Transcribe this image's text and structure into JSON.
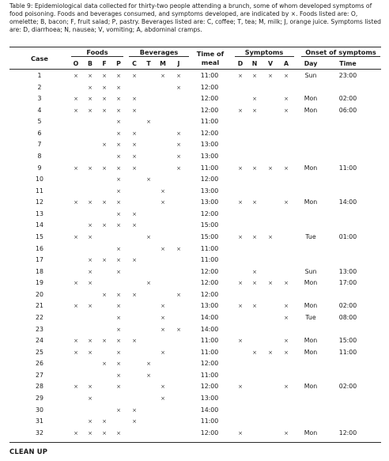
{
  "caption": "Table 9: Epidemiological data collected for thirty-two people attending a brunch, some of whom developed symptoms of food poisoning. Foods and beverages consumed, and symptoms developed, are indicated by ×. Foods listed are: O, omelette; B, bacon; F, fruit salad; P, pastry. Beverages listed are: C, coffee; T, tea; M, milk; J, orange juice. Symptoms listed are: D, diarrhoea; N, nausea; V, vomiting; A, abdominal cramps.",
  "headers": {
    "case": "Case",
    "foods": "Foods",
    "beverages": "Beverages",
    "time_of_meal_1": "Time of",
    "time_of_meal_2": "meal",
    "symptoms": "Symptoms",
    "onset": "Onset of symptoms",
    "food_cols": [
      "O",
      "B",
      "F",
      "P"
    ],
    "bev_cols": [
      "C",
      "T",
      "M",
      "J"
    ],
    "sym_cols": [
      "D",
      "N",
      "V",
      "A"
    ],
    "onset_day": "Day",
    "onset_time": "Time"
  },
  "mark_symbol": "×",
  "rows": [
    {
      "case": "1",
      "foods": [
        1,
        1,
        1,
        1
      ],
      "bev": [
        1,
        0,
        1,
        1
      ],
      "meal": "11:00",
      "sym": [
        1,
        1,
        1,
        1
      ],
      "day": "Sun",
      "time": "23:00"
    },
    {
      "case": "2",
      "foods": [
        0,
        1,
        1,
        1
      ],
      "bev": [
        0,
        0,
        0,
        1
      ],
      "meal": "12:00",
      "sym": [
        0,
        0,
        0,
        0
      ],
      "day": "",
      "time": ""
    },
    {
      "case": "3",
      "foods": [
        1,
        1,
        1,
        1
      ],
      "bev": [
        1,
        0,
        0,
        0
      ],
      "meal": "12:00",
      "sym": [
        0,
        1,
        0,
        1
      ],
      "day": "Mon",
      "time": "02:00"
    },
    {
      "case": "4",
      "foods": [
        1,
        1,
        1,
        1
      ],
      "bev": [
        1,
        0,
        0,
        0
      ],
      "meal": "12:00",
      "sym": [
        1,
        1,
        0,
        1
      ],
      "day": "Mon",
      "time": "06:00"
    },
    {
      "case": "5",
      "foods": [
        0,
        0,
        0,
        1
      ],
      "bev": [
        0,
        1,
        0,
        0
      ],
      "meal": "11:00",
      "sym": [
        0,
        0,
        0,
        0
      ],
      "day": "",
      "time": ""
    },
    {
      "case": "6",
      "foods": [
        0,
        0,
        0,
        1
      ],
      "bev": [
        1,
        0,
        0,
        1
      ],
      "meal": "12:00",
      "sym": [
        0,
        0,
        0,
        0
      ],
      "day": "",
      "time": ""
    },
    {
      "case": "7",
      "foods": [
        0,
        0,
        1,
        1
      ],
      "bev": [
        1,
        0,
        0,
        1
      ],
      "meal": "13:00",
      "sym": [
        0,
        0,
        0,
        0
      ],
      "day": "",
      "time": ""
    },
    {
      "case": "8",
      "foods": [
        0,
        0,
        0,
        1
      ],
      "bev": [
        1,
        0,
        0,
        1
      ],
      "meal": "13:00",
      "sym": [
        0,
        0,
        0,
        0
      ],
      "day": "",
      "time": ""
    },
    {
      "case": "9",
      "foods": [
        1,
        1,
        1,
        1
      ],
      "bev": [
        1,
        0,
        0,
        1
      ],
      "meal": "11:00",
      "sym": [
        1,
        1,
        1,
        1
      ],
      "day": "Mon",
      "time": "11:00"
    },
    {
      "case": "10",
      "foods": [
        0,
        0,
        0,
        1
      ],
      "bev": [
        0,
        1,
        0,
        0
      ],
      "meal": "12:00",
      "sym": [
        0,
        0,
        0,
        0
      ],
      "day": "",
      "time": ""
    },
    {
      "case": "11",
      "foods": [
        0,
        0,
        0,
        1
      ],
      "bev": [
        0,
        0,
        1,
        0
      ],
      "meal": "13:00",
      "sym": [
        0,
        0,
        0,
        0
      ],
      "day": "",
      "time": ""
    },
    {
      "case": "12",
      "foods": [
        1,
        1,
        1,
        1
      ],
      "bev": [
        0,
        0,
        1,
        0
      ],
      "meal": "13:00",
      "sym": [
        1,
        1,
        0,
        1
      ],
      "day": "Mon",
      "time": "14:00"
    },
    {
      "case": "13",
      "foods": [
        0,
        0,
        0,
        1
      ],
      "bev": [
        1,
        0,
        0,
        0
      ],
      "meal": "12:00",
      "sym": [
        0,
        0,
        0,
        0
      ],
      "day": "",
      "time": ""
    },
    {
      "case": "14",
      "foods": [
        0,
        1,
        1,
        1
      ],
      "bev": [
        1,
        0,
        0,
        0
      ],
      "meal": "15:00",
      "sym": [
        0,
        0,
        0,
        0
      ],
      "day": "",
      "time": ""
    },
    {
      "case": "15",
      "foods": [
        1,
        1,
        0,
        0
      ],
      "bev": [
        0,
        1,
        0,
        0
      ],
      "meal": "15:00",
      "sym": [
        1,
        1,
        1,
        0
      ],
      "day": "Tue",
      "time": "01:00"
    },
    {
      "case": "16",
      "foods": [
        0,
        0,
        0,
        1
      ],
      "bev": [
        0,
        0,
        1,
        1
      ],
      "meal": "11:00",
      "sym": [
        0,
        0,
        0,
        0
      ],
      "day": "",
      "time": ""
    },
    {
      "case": "17",
      "foods": [
        0,
        1,
        1,
        1
      ],
      "bev": [
        1,
        0,
        0,
        0
      ],
      "meal": "11:00",
      "sym": [
        0,
        0,
        0,
        0
      ],
      "day": "",
      "time": ""
    },
    {
      "case": "18",
      "foods": [
        0,
        1,
        0,
        1
      ],
      "bev": [
        0,
        0,
        0,
        0
      ],
      "meal": "12:00",
      "sym": [
        0,
        1,
        0,
        0
      ],
      "day": "Sun",
      "time": "13:00"
    },
    {
      "case": "19",
      "foods": [
        1,
        1,
        0,
        0
      ],
      "bev": [
        0,
        1,
        0,
        0
      ],
      "meal": "12:00",
      "sym": [
        1,
        1,
        1,
        1
      ],
      "day": "Mon",
      "time": "17:00"
    },
    {
      "case": "20",
      "foods": [
        0,
        0,
        1,
        1
      ],
      "bev": [
        1,
        0,
        0,
        1
      ],
      "meal": "12:00",
      "sym": [
        0,
        0,
        0,
        0
      ],
      "day": "",
      "time": ""
    },
    {
      "case": "21",
      "foods": [
        1,
        1,
        0,
        1
      ],
      "bev": [
        0,
        0,
        1,
        0
      ],
      "meal": "13:00",
      "sym": [
        1,
        1,
        0,
        1
      ],
      "day": "Mon",
      "time": "02:00"
    },
    {
      "case": "22",
      "foods": [
        0,
        0,
        0,
        1
      ],
      "bev": [
        0,
        0,
        1,
        0
      ],
      "meal": "14:00",
      "sym": [
        0,
        0,
        0,
        1
      ],
      "day": "Tue",
      "time": "08:00"
    },
    {
      "case": "23",
      "foods": [
        0,
        0,
        0,
        1
      ],
      "bev": [
        0,
        0,
        1,
        1
      ],
      "meal": "14:00",
      "sym": [
        0,
        0,
        0,
        0
      ],
      "day": "",
      "time": ""
    },
    {
      "case": "24",
      "foods": [
        1,
        1,
        1,
        1
      ],
      "bev": [
        1,
        0,
        0,
        0
      ],
      "meal": "11:00",
      "sym": [
        1,
        0,
        0,
        1
      ],
      "day": "Mon",
      "time": "15:00"
    },
    {
      "case": "25",
      "foods": [
        1,
        1,
        0,
        1
      ],
      "bev": [
        0,
        0,
        1,
        0
      ],
      "meal": "11:00",
      "sym": [
        0,
        1,
        1,
        1
      ],
      "day": "Mon",
      "time": "11:00"
    },
    {
      "case": "26",
      "foods": [
        0,
        0,
        1,
        1
      ],
      "bev": [
        0,
        1,
        0,
        0
      ],
      "meal": "12:00",
      "sym": [
        0,
        0,
        0,
        0
      ],
      "day": "",
      "time": ""
    },
    {
      "case": "27",
      "foods": [
        0,
        0,
        0,
        1
      ],
      "bev": [
        0,
        1,
        0,
        0
      ],
      "meal": "11:00",
      "sym": [
        0,
        0,
        0,
        0
      ],
      "day": "",
      "time": ""
    },
    {
      "case": "28",
      "foods": [
        1,
        1,
        0,
        1
      ],
      "bev": [
        0,
        0,
        1,
        0
      ],
      "meal": "12:00",
      "sym": [
        1,
        0,
        0,
        1
      ],
      "day": "Mon",
      "time": "02:00"
    },
    {
      "case": "29",
      "foods": [
        0,
        1,
        0,
        0
      ],
      "bev": [
        0,
        0,
        1,
        0
      ],
      "meal": "13:00",
      "sym": [
        0,
        0,
        0,
        0
      ],
      "day": "",
      "time": ""
    },
    {
      "case": "30",
      "foods": [
        0,
        0,
        0,
        1
      ],
      "bev": [
        1,
        0,
        0,
        0
      ],
      "meal": "14:00",
      "sym": [
        0,
        0,
        0,
        0
      ],
      "day": "",
      "time": ""
    },
    {
      "case": "31",
      "foods": [
        0,
        1,
        1,
        0
      ],
      "bev": [
        1,
        0,
        0,
        0
      ],
      "meal": "11:00",
      "sym": [
        0,
        0,
        0,
        0
      ],
      "day": "",
      "time": ""
    },
    {
      "case": "32",
      "foods": [
        1,
        1,
        1,
        1
      ],
      "bev": [
        0,
        0,
        0,
        0
      ],
      "meal": "12:00",
      "sym": [
        1,
        0,
        0,
        1
      ],
      "day": "Mon",
      "time": "12:00"
    }
  ],
  "footer": "CLEAN UP"
}
